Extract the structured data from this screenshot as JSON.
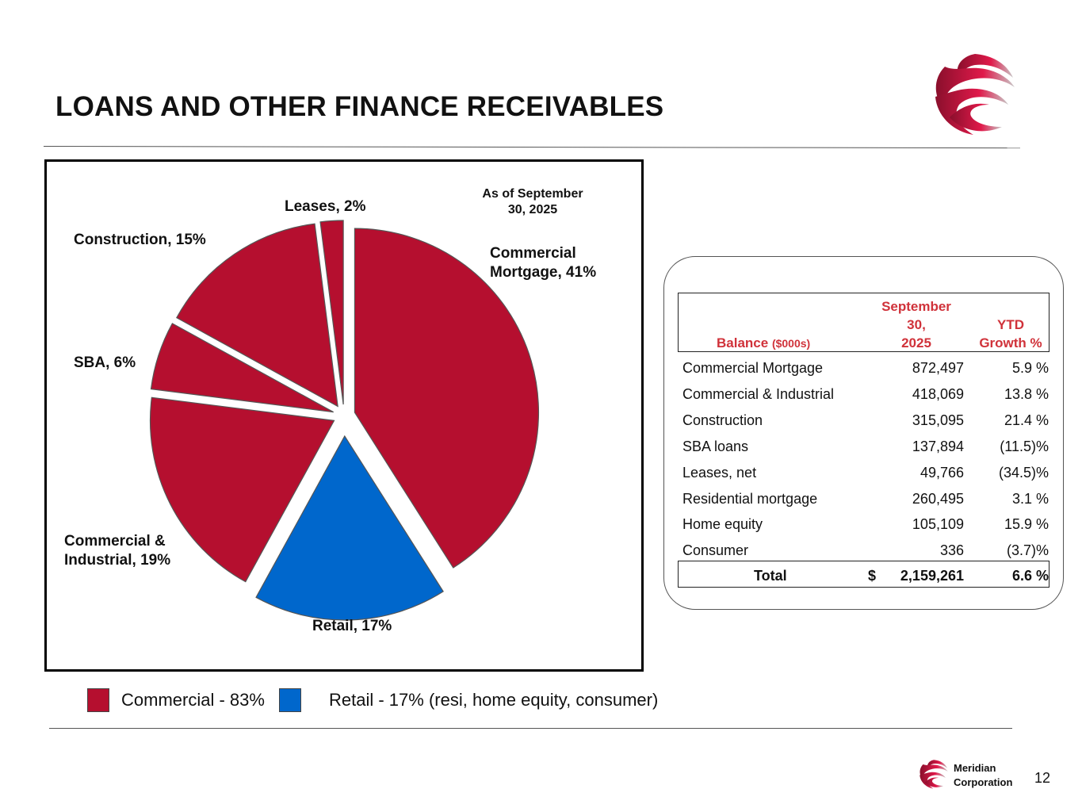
{
  "header": {
    "title": "LOANS AND OTHER FINANCE RECEIVABLES"
  },
  "chart_data": {
    "type": "pie",
    "title": "",
    "annotation": "As of September 30, 2025",
    "slices": [
      {
        "label": "Commercial Mortgage, 41%",
        "name": "Commercial Mortgage",
        "value": 41,
        "group": "commercial"
      },
      {
        "label": "Retail, 17%",
        "name": "Retail",
        "value": 17,
        "group": "retail",
        "exploded": true
      },
      {
        "label": "Commercial & Industrial, 19%",
        "name": "Commercial & Industrial",
        "value": 19,
        "group": "commercial"
      },
      {
        "label": "SBA, 6%",
        "name": "SBA",
        "value": 6,
        "group": "commercial"
      },
      {
        "label": "Construction, 15%",
        "name": "Construction",
        "value": 15,
        "group": "commercial"
      },
      {
        "label": "Leases, 2%",
        "name": "Leases",
        "value": 2,
        "group": "commercial"
      }
    ],
    "colors": {
      "commercial": "#b50f2f",
      "retail": "#0067cc"
    }
  },
  "chart_labels": {
    "leases": "Leases, 2%",
    "construction": "Construction, 15%",
    "sba": "SBA, 6%",
    "ci_line1": "Commercial &",
    "ci_line2": "Industrial, 19%",
    "retail": "Retail, 17%",
    "cm_line1": "Commercial",
    "cm_line2": "Mortgage, 41%",
    "asof_line1": "As of September",
    "asof_line2": "30, 2025"
  },
  "legend": {
    "commercial": "Commercial - 83%",
    "retail": "Retail - 17% (resi, home equity, consumer)"
  },
  "table": {
    "col_balance": "Balance",
    "col_balance_unit": "($000s)",
    "col_date_line1": "September",
    "col_date_line2": "30,",
    "col_date_line3": "2025",
    "col_growth_line1": "YTD",
    "col_growth_line2": "Growth %",
    "rows": [
      {
        "name": "Commercial Mortgage",
        "balance": "872,497",
        "growth": "5.9 %"
      },
      {
        "name": "Commercial & Industrial",
        "balance": "418,069",
        "growth": "13.8 %"
      },
      {
        "name": "Construction",
        "balance": "315,095",
        "growth": "21.4 %"
      },
      {
        "name": "SBA loans",
        "balance": "137,894",
        "growth": "(11.5)%"
      },
      {
        "name": "Leases, net",
        "balance": "49,766",
        "growth": "(34.5)%"
      },
      {
        "name": "Residential mortgage",
        "balance": "260,495",
        "growth": "3.1 %"
      },
      {
        "name": "Home equity",
        "balance": "105,109",
        "growth": "15.9 %"
      },
      {
        "name": "Consumer",
        "balance": "336",
        "growth": "(3.7)%"
      }
    ],
    "total": {
      "label": "Total",
      "currency": "$",
      "balance": "2,159,261",
      "growth": "6.6 %"
    }
  },
  "footer": {
    "company_line1": "Meridian",
    "company_line2": "Corporation",
    "page_number": "12"
  }
}
